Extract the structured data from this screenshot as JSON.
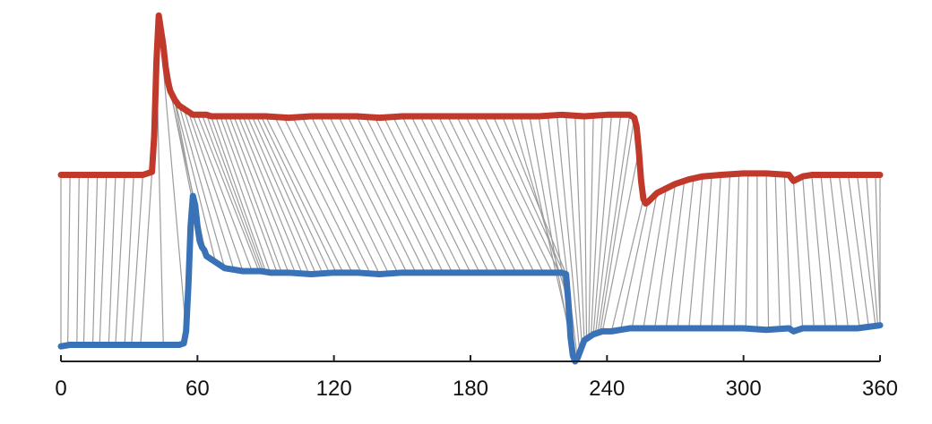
{
  "chart_data": {
    "type": "line",
    "title": "",
    "xlabel": "",
    "ylabel": "",
    "xlim": [
      0,
      360
    ],
    "ylim": [
      0,
      1.16
    ],
    "x_ticks": [
      0,
      60,
      120,
      180,
      240,
      300,
      360
    ],
    "x_tick_labels": [
      "0",
      "60",
      "120",
      "180",
      "240",
      "300",
      "360"
    ],
    "y_axis_visible": false,
    "grid": false,
    "legend": "none",
    "connector_lines": {
      "description_shown": "gray alignment lines linking points of the top series to points of the bottom series",
      "color": "#9c9c9c",
      "pairs": [
        [
          0,
          0
        ],
        [
          4,
          3
        ],
        [
          8,
          7
        ],
        [
          12,
          10
        ],
        [
          16,
          14
        ],
        [
          20,
          17
        ],
        [
          24,
          21
        ],
        [
          28,
          24
        ],
        [
          32,
          28
        ],
        [
          36,
          31
        ],
        [
          40,
          35
        ],
        [
          42,
          45
        ],
        [
          43,
          55
        ],
        [
          44,
          58
        ],
        [
          46,
          60
        ],
        [
          48,
          64
        ],
        [
          50,
          68
        ],
        [
          52,
          72
        ],
        [
          54,
          76
        ],
        [
          56,
          80
        ],
        [
          58,
          84
        ],
        [
          60,
          87
        ],
        [
          62,
          88
        ],
        [
          64,
          89
        ],
        [
          66,
          90
        ],
        [
          68,
          92
        ],
        [
          70,
          95
        ],
        [
          72,
          97
        ],
        [
          74,
          100
        ],
        [
          76,
          103
        ],
        [
          78,
          106
        ],
        [
          80,
          109
        ],
        [
          82,
          112
        ],
        [
          84,
          115
        ],
        [
          86,
          118
        ],
        [
          88,
          121
        ],
        [
          90,
          124
        ],
        [
          94,
          128
        ],
        [
          98,
          132
        ],
        [
          102,
          136
        ],
        [
          106,
          140
        ],
        [
          110,
          144
        ],
        [
          114,
          148
        ],
        [
          118,
          152
        ],
        [
          122,
          156
        ],
        [
          126,
          160
        ],
        [
          130,
          164
        ],
        [
          134,
          168
        ],
        [
          138,
          172
        ],
        [
          142,
          176
        ],
        [
          146,
          180
        ],
        [
          150,
          184
        ],
        [
          154,
          188
        ],
        [
          158,
          192
        ],
        [
          162,
          196
        ],
        [
          166,
          200
        ],
        [
          170,
          204
        ],
        [
          174,
          208
        ],
        [
          178,
          212
        ],
        [
          182,
          216
        ],
        [
          186,
          219
        ],
        [
          190,
          221
        ],
        [
          194,
          222
        ],
        [
          198,
          223
        ],
        [
          202,
          224
        ],
        [
          206,
          225
        ],
        [
          210,
          226
        ],
        [
          214,
          227
        ],
        [
          218,
          228
        ],
        [
          222,
          229
        ],
        [
          226,
          230
        ],
        [
          230,
          231
        ],
        [
          234,
          232
        ],
        [
          238,
          233
        ],
        [
          242,
          234
        ],
        [
          246,
          235
        ],
        [
          250,
          236
        ],
        [
          252,
          237
        ],
        [
          254,
          238
        ],
        [
          256,
          242
        ],
        [
          258,
          246
        ],
        [
          262,
          251
        ],
        [
          266,
          256
        ],
        [
          270,
          261
        ],
        [
          274,
          266
        ],
        [
          278,
          271
        ],
        [
          282,
          276
        ],
        [
          286,
          281
        ],
        [
          290,
          286
        ],
        [
          294,
          291
        ],
        [
          298,
          296
        ],
        [
          302,
          301
        ],
        [
          306,
          306
        ],
        [
          310,
          311
        ],
        [
          314,
          316
        ],
        [
          318,
          321
        ],
        [
          322,
          326
        ],
        [
          326,
          331
        ],
        [
          330,
          336
        ],
        [
          334,
          341
        ],
        [
          338,
          346
        ],
        [
          342,
          351
        ],
        [
          346,
          355
        ],
        [
          350,
          358
        ],
        [
          354,
          359
        ],
        [
          358,
          360
        ],
        [
          360,
          360
        ]
      ]
    },
    "series": [
      {
        "color": "#c0392b",
        "x": [
          0,
          4,
          8,
          12,
          16,
          20,
          24,
          28,
          32,
          36,
          40,
          41,
          42,
          43,
          44,
          45,
          46,
          47,
          48,
          50,
          52,
          54,
          56,
          58,
          60,
          62,
          64,
          66,
          70,
          80,
          90,
          100,
          110,
          120,
          130,
          140,
          150,
          160,
          170,
          180,
          190,
          200,
          210,
          220,
          230,
          240,
          245,
          250,
          252,
          253,
          254,
          255,
          256,
          257,
          258,
          260,
          262,
          266,
          270,
          276,
          282,
          290,
          300,
          310,
          320,
          322,
          326,
          330,
          340,
          350,
          360
        ],
        "y": [
          0.62,
          0.62,
          0.62,
          0.62,
          0.62,
          0.62,
          0.62,
          0.62,
          0.62,
          0.62,
          0.63,
          0.75,
          1.0,
          1.15,
          1.1,
          1.05,
          0.98,
          0.93,
          0.9,
          0.87,
          0.85,
          0.84,
          0.83,
          0.82,
          0.82,
          0.82,
          0.82,
          0.815,
          0.815,
          0.815,
          0.815,
          0.81,
          0.815,
          0.815,
          0.815,
          0.81,
          0.815,
          0.815,
          0.815,
          0.815,
          0.815,
          0.815,
          0.815,
          0.82,
          0.815,
          0.82,
          0.82,
          0.82,
          0.81,
          0.78,
          0.7,
          0.6,
          0.54,
          0.525,
          0.53,
          0.545,
          0.56,
          0.575,
          0.59,
          0.605,
          0.615,
          0.62,
          0.625,
          0.625,
          0.62,
          0.6,
          0.615,
          0.62,
          0.62,
          0.62,
          0.62
        ]
      },
      {
        "color": "#3a72b8",
        "x": [
          0,
          4,
          8,
          12,
          16,
          20,
          24,
          28,
          32,
          36,
          40,
          44,
          48,
          52,
          54,
          55,
          56,
          57,
          58,
          59,
          60,
          61,
          62,
          63,
          64,
          66,
          68,
          70,
          72,
          76,
          80,
          84,
          88,
          92,
          100,
          110,
          120,
          130,
          140,
          150,
          160,
          170,
          180,
          190,
          200,
          210,
          220,
          222,
          223,
          224,
          225,
          226,
          227,
          228,
          229,
          230,
          232,
          234,
          238,
          242,
          246,
          250,
          256,
          262,
          270,
          280,
          290,
          300,
          310,
          320,
          322,
          326,
          330,
          340,
          350,
          360
        ],
        "y": [
          0.05,
          0.055,
          0.055,
          0.055,
          0.055,
          0.055,
          0.055,
          0.055,
          0.055,
          0.055,
          0.055,
          0.055,
          0.055,
          0.055,
          0.06,
          0.1,
          0.25,
          0.45,
          0.55,
          0.52,
          0.45,
          0.4,
          0.38,
          0.37,
          0.35,
          0.34,
          0.33,
          0.32,
          0.31,
          0.305,
          0.3,
          0.3,
          0.3,
          0.295,
          0.295,
          0.29,
          0.295,
          0.295,
          0.29,
          0.295,
          0.295,
          0.295,
          0.295,
          0.295,
          0.295,
          0.295,
          0.295,
          0.29,
          0.2,
          0.08,
          0.02,
          0.0,
          0.01,
          0.03,
          0.05,
          0.07,
          0.08,
          0.09,
          0.1,
          0.1,
          0.105,
          0.11,
          0.11,
          0.11,
          0.11,
          0.11,
          0.11,
          0.11,
          0.105,
          0.11,
          0.1,
          0.11,
          0.11,
          0.11,
          0.11,
          0.12
        ]
      }
    ]
  }
}
